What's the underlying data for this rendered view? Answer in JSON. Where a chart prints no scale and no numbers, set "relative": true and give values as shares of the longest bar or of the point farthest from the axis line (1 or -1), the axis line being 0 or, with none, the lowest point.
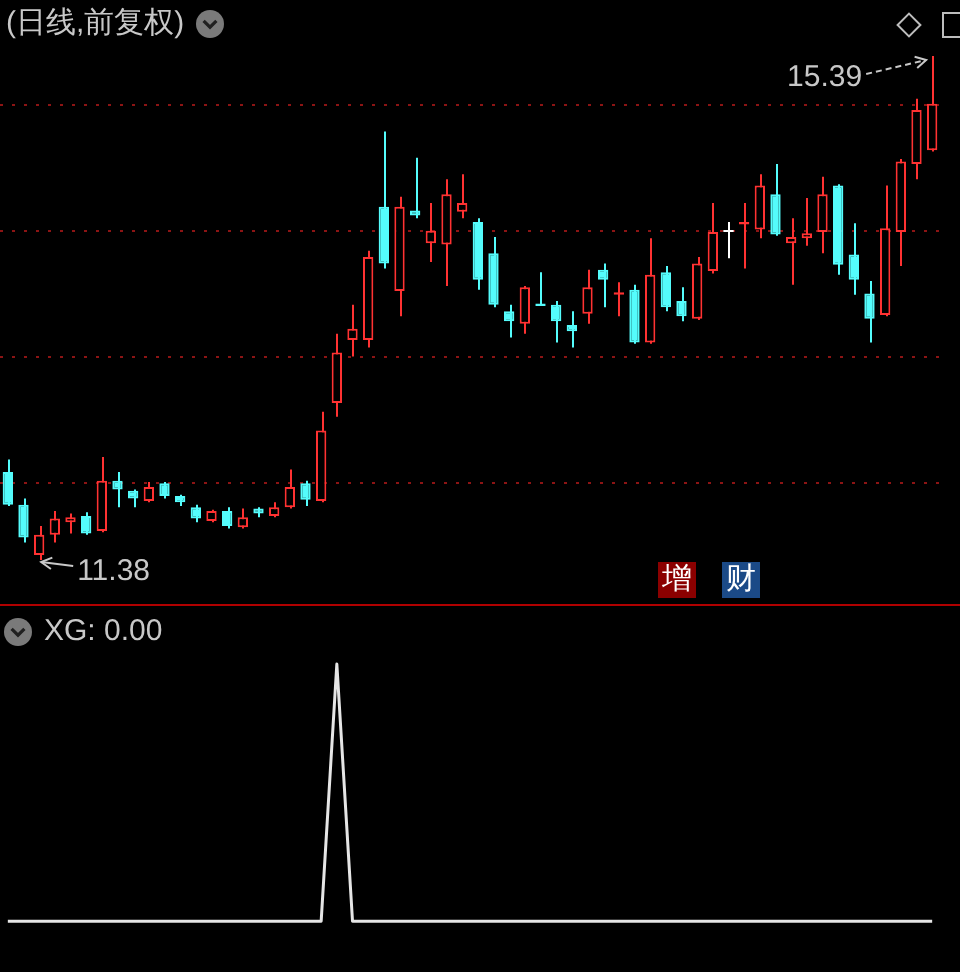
{
  "chart_data": [
    {
      "type": "candlestick",
      "title": "(日线,前复权)",
      "categories": [
        null,
        null,
        null,
        null,
        null,
        null,
        null,
        null,
        null,
        null,
        null,
        null,
        null,
        null,
        null,
        null,
        null,
        null,
        null,
        null,
        null,
        null,
        null,
        null,
        null,
        null,
        null,
        null,
        null,
        null,
        null,
        null,
        null,
        null,
        null,
        null,
        null,
        null,
        null,
        null,
        null,
        null,
        null,
        null,
        null,
        null,
        null,
        null,
        null,
        null,
        null,
        null,
        null,
        null,
        null,
        null,
        null,
        null,
        null,
        null
      ],
      "ohlc": [
        [
          12.08,
          12.18,
          11.81,
          11.82
        ],
        [
          11.82,
          11.87,
          11.52,
          11.56
        ],
        [
          11.42,
          11.65,
          11.38,
          11.58
        ],
        [
          11.58,
          11.77,
          11.52,
          11.71
        ],
        [
          11.68,
          11.75,
          11.59,
          11.72
        ],
        [
          11.73,
          11.76,
          11.58,
          11.59
        ],
        [
          11.61,
          12.2,
          11.6,
          12.01
        ],
        [
          12.01,
          12.08,
          11.8,
          11.94
        ],
        [
          11.93,
          11.94,
          11.8,
          11.87
        ],
        [
          11.85,
          12.0,
          11.84,
          11.96
        ],
        [
          11.99,
          12.0,
          11.87,
          11.89
        ],
        [
          11.89,
          11.9,
          11.81,
          11.84
        ],
        [
          11.8,
          11.82,
          11.68,
          11.71
        ],
        [
          11.69,
          11.78,
          11.68,
          11.77
        ],
        [
          11.77,
          11.8,
          11.63,
          11.65
        ],
        [
          11.64,
          11.79,
          11.63,
          11.72
        ],
        [
          11.79,
          11.8,
          11.72,
          11.75
        ],
        [
          11.73,
          11.84,
          11.72,
          11.8
        ],
        [
          11.8,
          12.1,
          11.79,
          11.96
        ],
        [
          11.99,
          12.01,
          11.81,
          11.86
        ],
        [
          11.85,
          12.56,
          11.84,
          12.41
        ],
        [
          12.63,
          13.18,
          12.52,
          13.03
        ],
        [
          13.13,
          13.41,
          13.0,
          13.22
        ],
        [
          13.13,
          13.84,
          13.07,
          13.79
        ],
        [
          14.19,
          14.79,
          13.7,
          13.74
        ],
        [
          13.52,
          14.27,
          13.32,
          14.19
        ],
        [
          14.16,
          14.58,
          14.1,
          14.12
        ],
        [
          13.9,
          14.22,
          13.75,
          14.0
        ],
        [
          13.89,
          14.41,
          13.56,
          14.29
        ],
        [
          14.15,
          14.45,
          14.1,
          14.22
        ],
        [
          14.07,
          14.1,
          13.53,
          13.61
        ],
        [
          13.82,
          13.95,
          13.39,
          13.41
        ],
        [
          13.36,
          13.41,
          13.15,
          13.28
        ],
        [
          13.26,
          13.56,
          13.18,
          13.55
        ],
        [
          13.42,
          13.67,
          13.4,
          13.4
        ],
        [
          13.41,
          13.44,
          13.11,
          13.28
        ],
        [
          13.25,
          13.36,
          13.07,
          13.2
        ],
        [
          13.34,
          13.69,
          13.26,
          13.55
        ],
        [
          13.69,
          13.74,
          13.39,
          13.61
        ],
        [
          13.49,
          13.59,
          13.32,
          13.51
        ],
        [
          13.53,
          13.57,
          13.1,
          13.11
        ],
        [
          13.11,
          13.94,
          13.1,
          13.65
        ],
        [
          13.67,
          13.72,
          13.36,
          13.39
        ],
        [
          13.44,
          13.55,
          13.28,
          13.32
        ],
        [
          13.3,
          13.79,
          13.29,
          13.74
        ],
        [
          13.68,
          14.22,
          13.66,
          13.99
        ],
        [
          14.01,
          14.07,
          13.78,
          14.01
        ],
        [
          14.05,
          14.22,
          13.7,
          14.07
        ],
        [
          14.01,
          14.45,
          13.94,
          14.36
        ],
        [
          14.29,
          14.53,
          13.96,
          13.97
        ],
        [
          13.9,
          14.1,
          13.57,
          13.95
        ],
        [
          13.94,
          14.26,
          13.88,
          13.98
        ],
        [
          13.99,
          14.43,
          13.82,
          14.29
        ],
        [
          14.36,
          14.37,
          13.65,
          13.73
        ],
        [
          13.81,
          14.06,
          13.49,
          13.61
        ],
        [
          13.5,
          13.6,
          13.11,
          13.3
        ],
        [
          13.33,
          14.36,
          13.32,
          14.02
        ],
        [
          13.99,
          14.57,
          13.72,
          14.55
        ],
        [
          14.53,
          15.05,
          14.41,
          14.96
        ],
        [
          14.64,
          15.39,
          14.63,
          15.01
        ]
      ],
      "colors": [
        "#54fcfc",
        "#54fcfc",
        "#ff3232",
        "#ff3232",
        "#ff3232",
        "#54fcfc",
        "#ff3232",
        "#54fcfc",
        "#54fcfc",
        "#ff3232",
        "#54fcfc",
        "#54fcfc",
        "#54fcfc",
        "#ff3232",
        "#54fcfc",
        "#ff3232",
        "#54fcfc",
        "#ff3232",
        "#ff3232",
        "#54fcfc",
        "#ff3232",
        "#ff3232",
        "#ff3232",
        "#ff3232",
        "#54fcfc",
        "#ff3232",
        "#54fcfc",
        "#ff3232",
        "#ff3232",
        "#ff3232",
        "#54fcfc",
        "#54fcfc",
        "#54fcfc",
        "#ff3232",
        "#54fcfc",
        "#54fcfc",
        "#54fcfc",
        "#ff3232",
        "#54fcfc",
        "#ff3232",
        "#54fcfc",
        "#ff3232",
        "#54fcfc",
        "#54fcfc",
        "#ff3232",
        "#ff3232",
        "#ffffff",
        "#ff3232",
        "#ff3232",
        "#54fcfc",
        "#ff3232",
        "#ff3232",
        "#ff3232",
        "#54fcfc",
        "#54fcfc",
        "#54fcfc",
        "#ff3232",
        "#ff3232",
        "#ff3232",
        "#ff3232"
      ],
      "yticks": [
        12,
        13,
        14,
        15
      ],
      "tick_labels": false,
      "grid": "y",
      "annotations": [
        "15.39",
        "11.38",
        "增",
        "财"
      ]
    },
    {
      "type": "line",
      "title": "XG: 0.00",
      "categories": [
        null,
        null,
        null,
        null,
        null,
        null,
        null,
        null,
        null,
        null,
        null,
        null,
        null,
        null,
        null,
        null,
        null,
        null,
        null,
        null,
        null,
        null,
        null,
        null,
        null,
        null,
        null,
        null,
        null,
        null,
        null,
        null,
        null,
        null,
        null,
        null,
        null,
        null,
        null,
        null,
        null,
        null,
        null,
        null,
        null,
        null,
        null,
        null,
        null,
        null,
        null,
        null,
        null,
        null,
        null,
        null,
        null,
        null,
        null,
        null
      ],
      "values": [
        0,
        0,
        0,
        0,
        0,
        0,
        0,
        0,
        0,
        0,
        0,
        0,
        0,
        0,
        0,
        0,
        0,
        0,
        0,
        0,
        0,
        1,
        0,
        0,
        0,
        0,
        0,
        0,
        0,
        0,
        0,
        0,
        0,
        0,
        0,
        0,
        0,
        0,
        0,
        0,
        0,
        0,
        0,
        0,
        0,
        0,
        0,
        0,
        0,
        0,
        0,
        0,
        0,
        0,
        0,
        0,
        0,
        0,
        0,
        0
      ],
      "color": "#e6e6e6",
      "relative": true
    }
  ]
}
